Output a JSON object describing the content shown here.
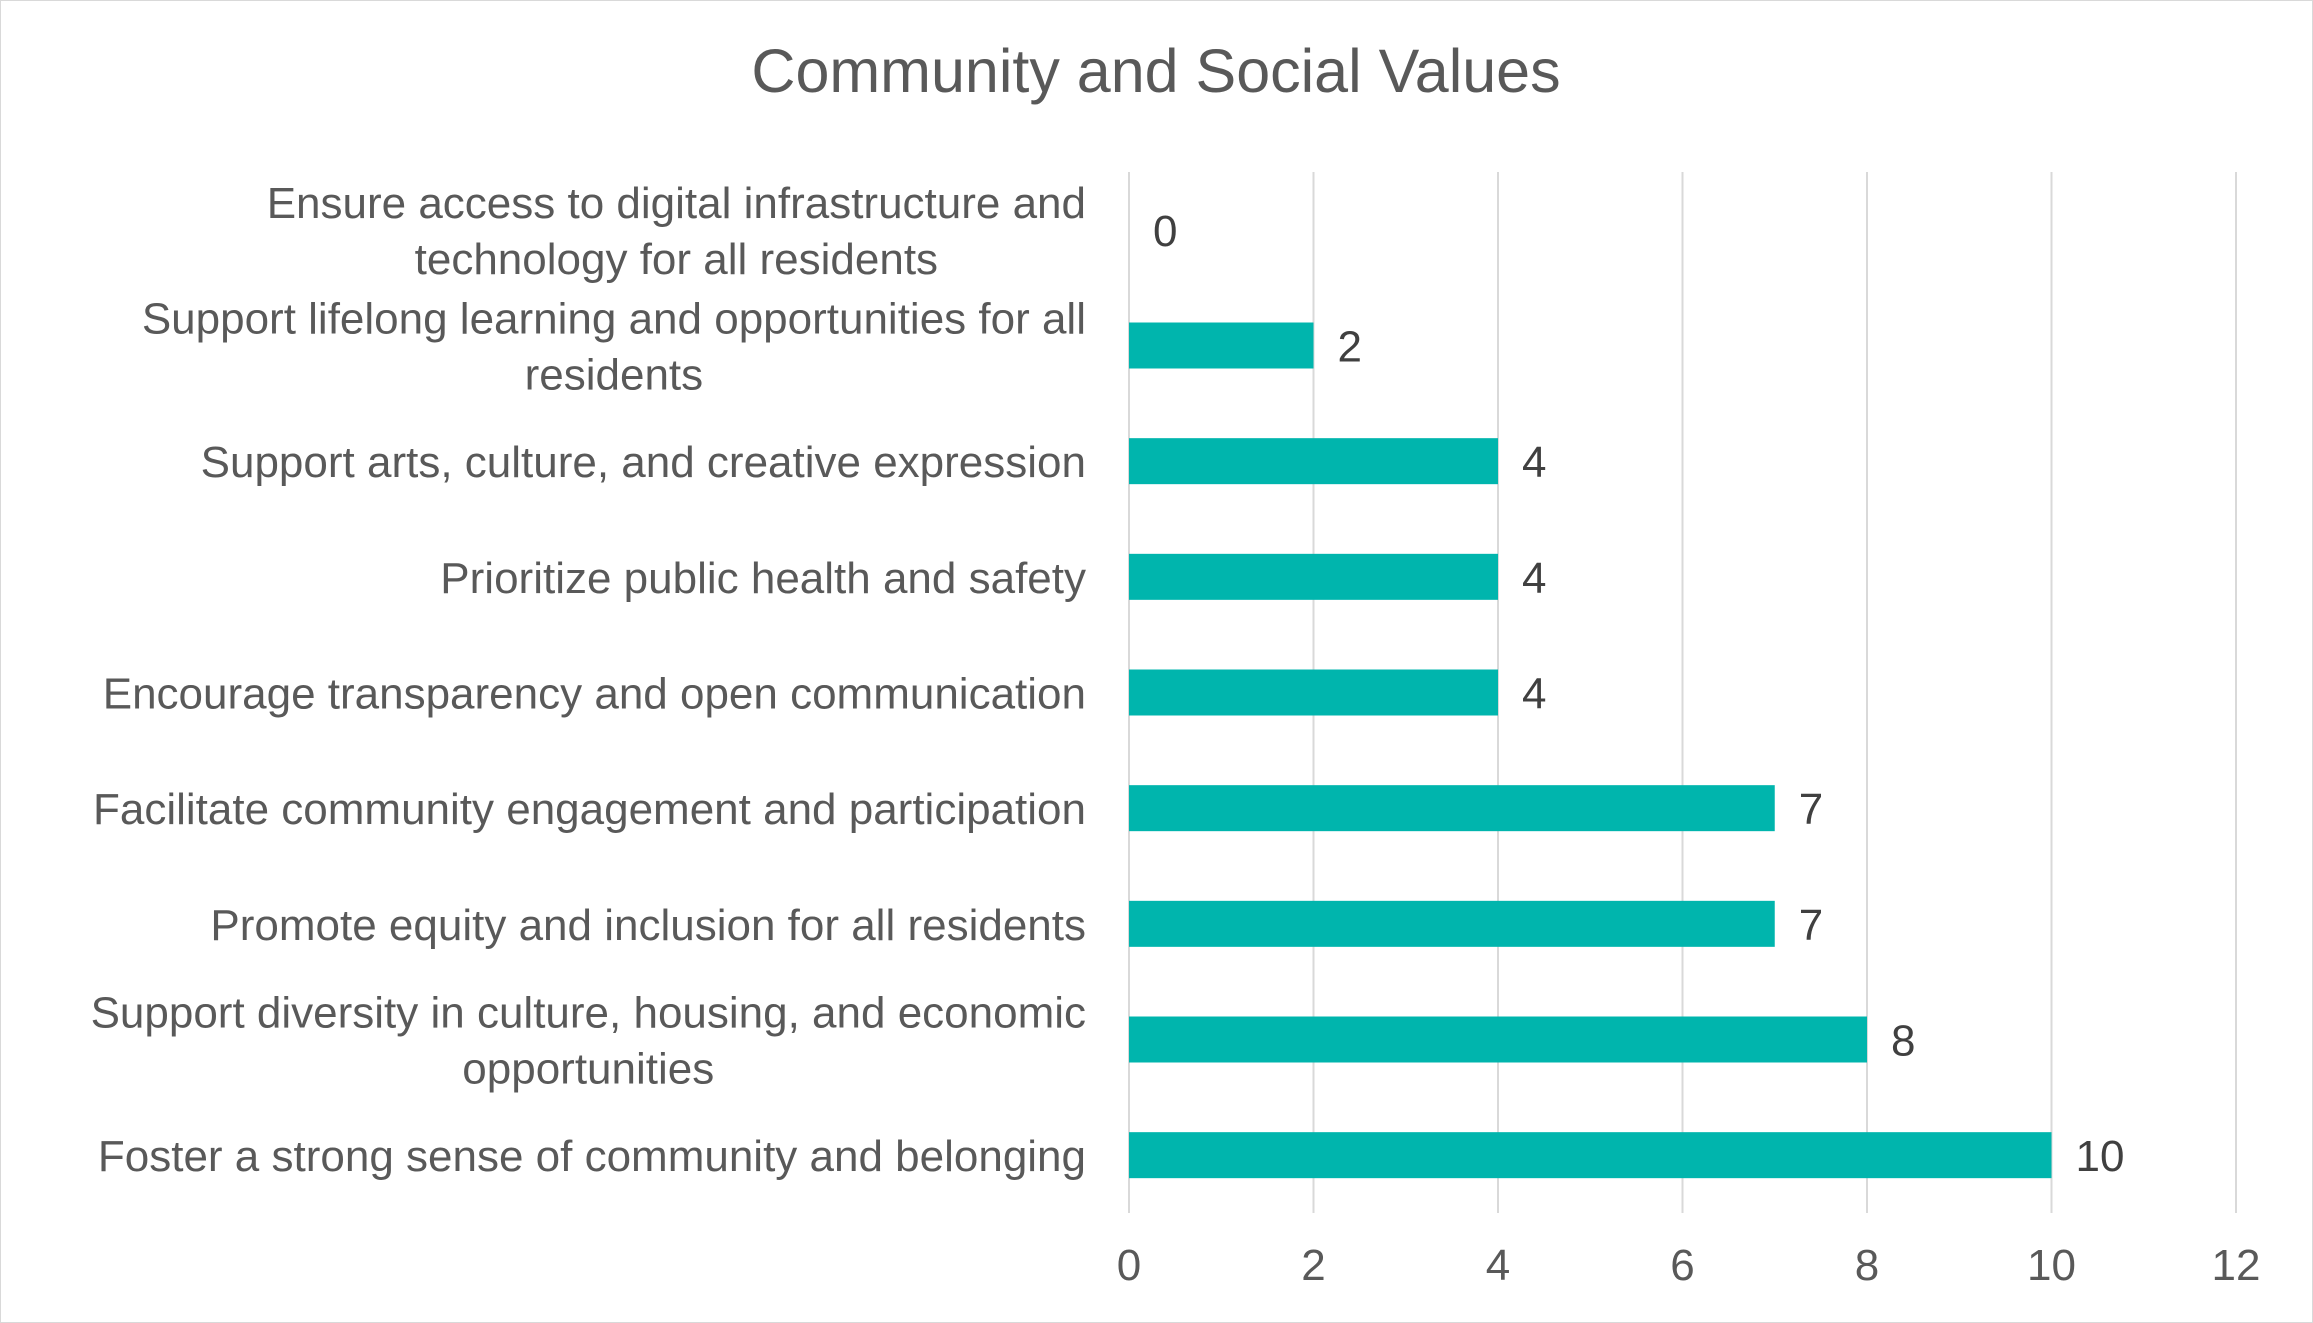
{
  "chart_data": {
    "type": "bar",
    "orientation": "horizontal",
    "title": "Community and Social Values",
    "xlabel": "",
    "ylabel": "",
    "xlim": [
      0,
      12
    ],
    "ticks": [
      0,
      2,
      4,
      6,
      8,
      10,
      12
    ],
    "grid": true,
    "legend": "none",
    "bar_color": "#00B5AD",
    "categories": [
      "Ensure access to digital infrastructure and technology for all residents",
      "Support lifelong learning and opportunities for all residents",
      "Support arts, culture, and creative expression",
      "Prioritize public health and safety",
      "Encourage transparency and open communication",
      "Facilitate community engagement and participation",
      "Promote equity and inclusion for all residents",
      "Support diversity in culture, housing, and economic opportunities",
      "Foster a strong sense of community and belonging"
    ],
    "category_lines": [
      [
        "Ensure access to digital infrastructure and",
        "technology for all residents"
      ],
      [
        "Support lifelong learning and opportunities for all",
        "residents"
      ],
      [
        "Support arts, culture, and creative expression"
      ],
      [
        "Prioritize public health and safety"
      ],
      [
        "Encourage transparency and open communication"
      ],
      [
        "Facilitate community engagement and participation"
      ],
      [
        "Promote equity and inclusion for all residents"
      ],
      [
        "Support diversity in culture, housing, and economic",
        "opportunities"
      ],
      [
        "Foster a strong sense of community and belonging"
      ]
    ],
    "values": [
      0,
      2,
      4,
      4,
      4,
      7,
      7,
      8,
      10
    ]
  }
}
